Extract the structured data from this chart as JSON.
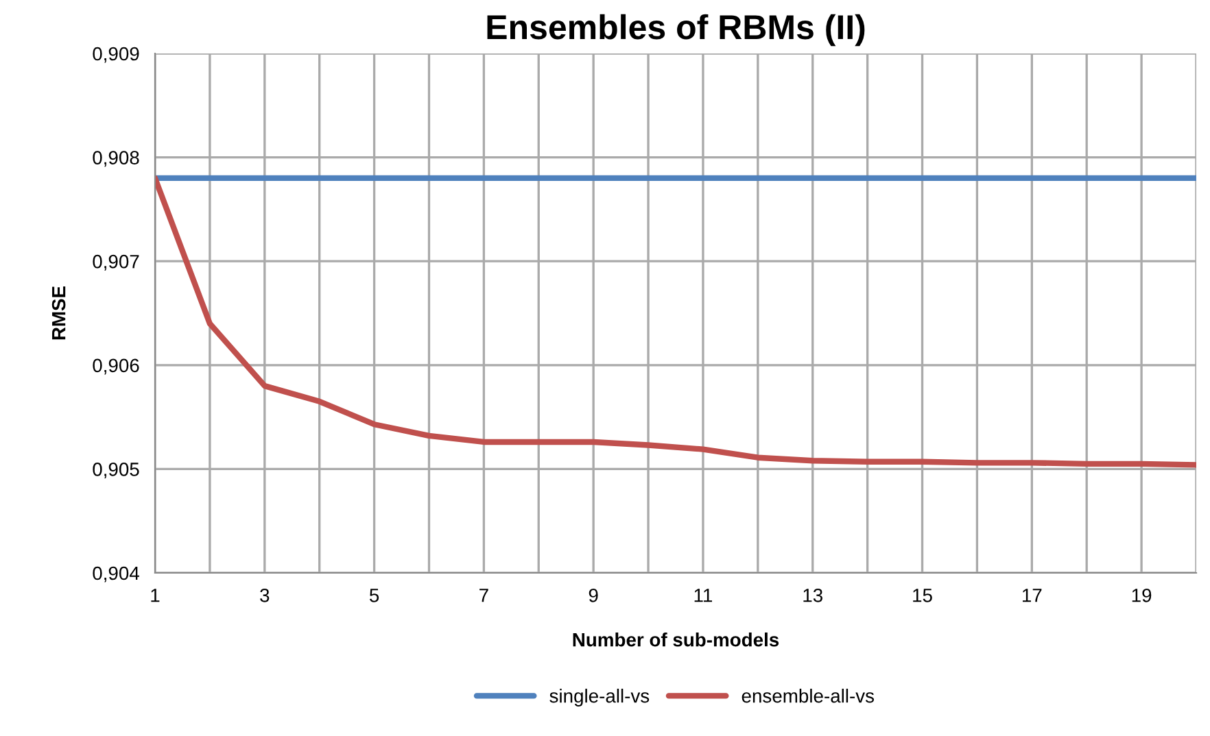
{
  "chart_data": {
    "type": "line",
    "title": "Ensembles of RBMs (II)",
    "xlabel": "Number of sub-models",
    "ylabel": "RMSE",
    "categories": [
      "1",
      null,
      "3",
      null,
      "5",
      null,
      "7",
      null,
      "9",
      null,
      "11",
      null,
      "13",
      null,
      "15",
      null,
      "17",
      null,
      "19",
      null
    ],
    "series": [
      {
        "name": "single-all-vs",
        "color": "#4f81bd",
        "values": [
          0.9078,
          0.9078,
          0.9078,
          0.9078,
          0.9078,
          0.9078,
          0.9078,
          0.9078,
          0.9078,
          0.9078,
          0.9078,
          0.9078,
          0.9078,
          0.9078,
          0.9078,
          0.9078,
          0.9078,
          0.9078,
          0.9078,
          0.9078
        ]
      },
      {
        "name": "ensemble-all-vs",
        "color": "#c0504d",
        "values": [
          0.9078,
          0.9064,
          0.9058,
          0.90565,
          0.90543,
          0.90532,
          0.90526,
          0.90526,
          0.90526,
          0.90523,
          0.90519,
          0.90511,
          0.90508,
          0.90507,
          0.90507,
          0.90506,
          0.90506,
          0.90505,
          0.90505,
          0.90504
        ]
      }
    ],
    "ylim": [
      0.904,
      0.909
    ],
    "yticks": [
      {
        "value": 0.904,
        "label": "0,904"
      },
      {
        "value": 0.905,
        "label": "0,905"
      },
      {
        "value": 0.906,
        "label": "0,906"
      },
      {
        "value": 0.907,
        "label": "0,907"
      },
      {
        "value": 0.908,
        "label": "0,908"
      },
      {
        "value": 0.909,
        "label": "0,909"
      }
    ],
    "grid": true,
    "legend": "bottom",
    "marker": "none",
    "line_style": "solid"
  }
}
